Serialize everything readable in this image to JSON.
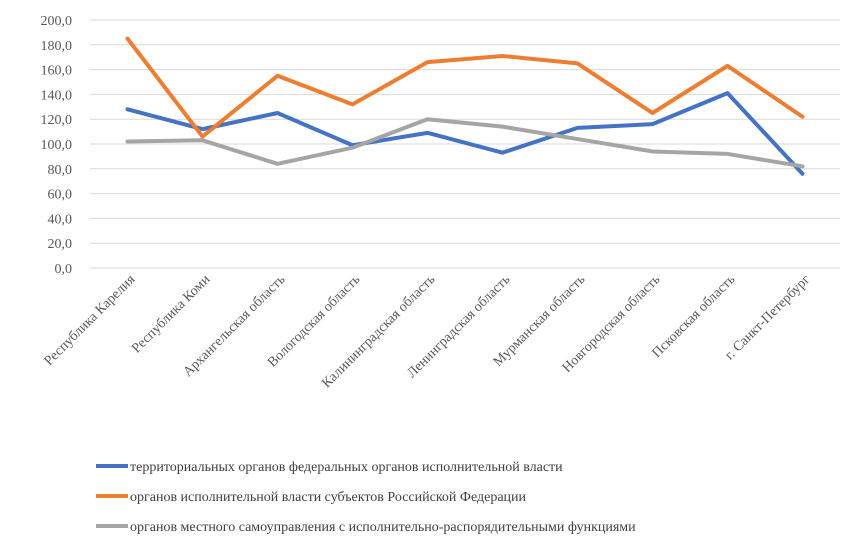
{
  "chart_data": {
    "type": "line",
    "categories": [
      "Республика Карелия",
      "Республика Коми",
      "Архангельская область",
      "Вологодская область",
      "Калининградская область",
      "Ленинградская область",
      "Мурманская область",
      "Новгородская область",
      "Псковская область",
      "г. Санкт-Петербург"
    ],
    "series": [
      {
        "name": "территориальных органов федеральных органов исполнительной власти",
        "color": "#4472c4",
        "values": [
          128,
          112,
          125,
          99,
          109,
          93,
          113,
          116,
          141,
          76
        ]
      },
      {
        "name": "органов исполнительной власти субъектов Российской Федерации",
        "color": "#ed7d31",
        "values": [
          185,
          106,
          155,
          132,
          166,
          171,
          165,
          125,
          163,
          122
        ]
      },
      {
        "name": "органов местного самоуправления с исполнительно-распорядительными функциями",
        "color": "#a5a5a5",
        "values": [
          102,
          103,
          84,
          97,
          120,
          114,
          104,
          94,
          92,
          82
        ]
      }
    ],
    "yticks": [
      "0,0",
      "20,0",
      "40,0",
      "60,0",
      "80,0",
      "100,0",
      "120,0",
      "140,0",
      "160,0",
      "180,0",
      "200,0"
    ],
    "ylim": [
      0,
      200
    ],
    "grid": true,
    "legend_position": "bottom"
  }
}
